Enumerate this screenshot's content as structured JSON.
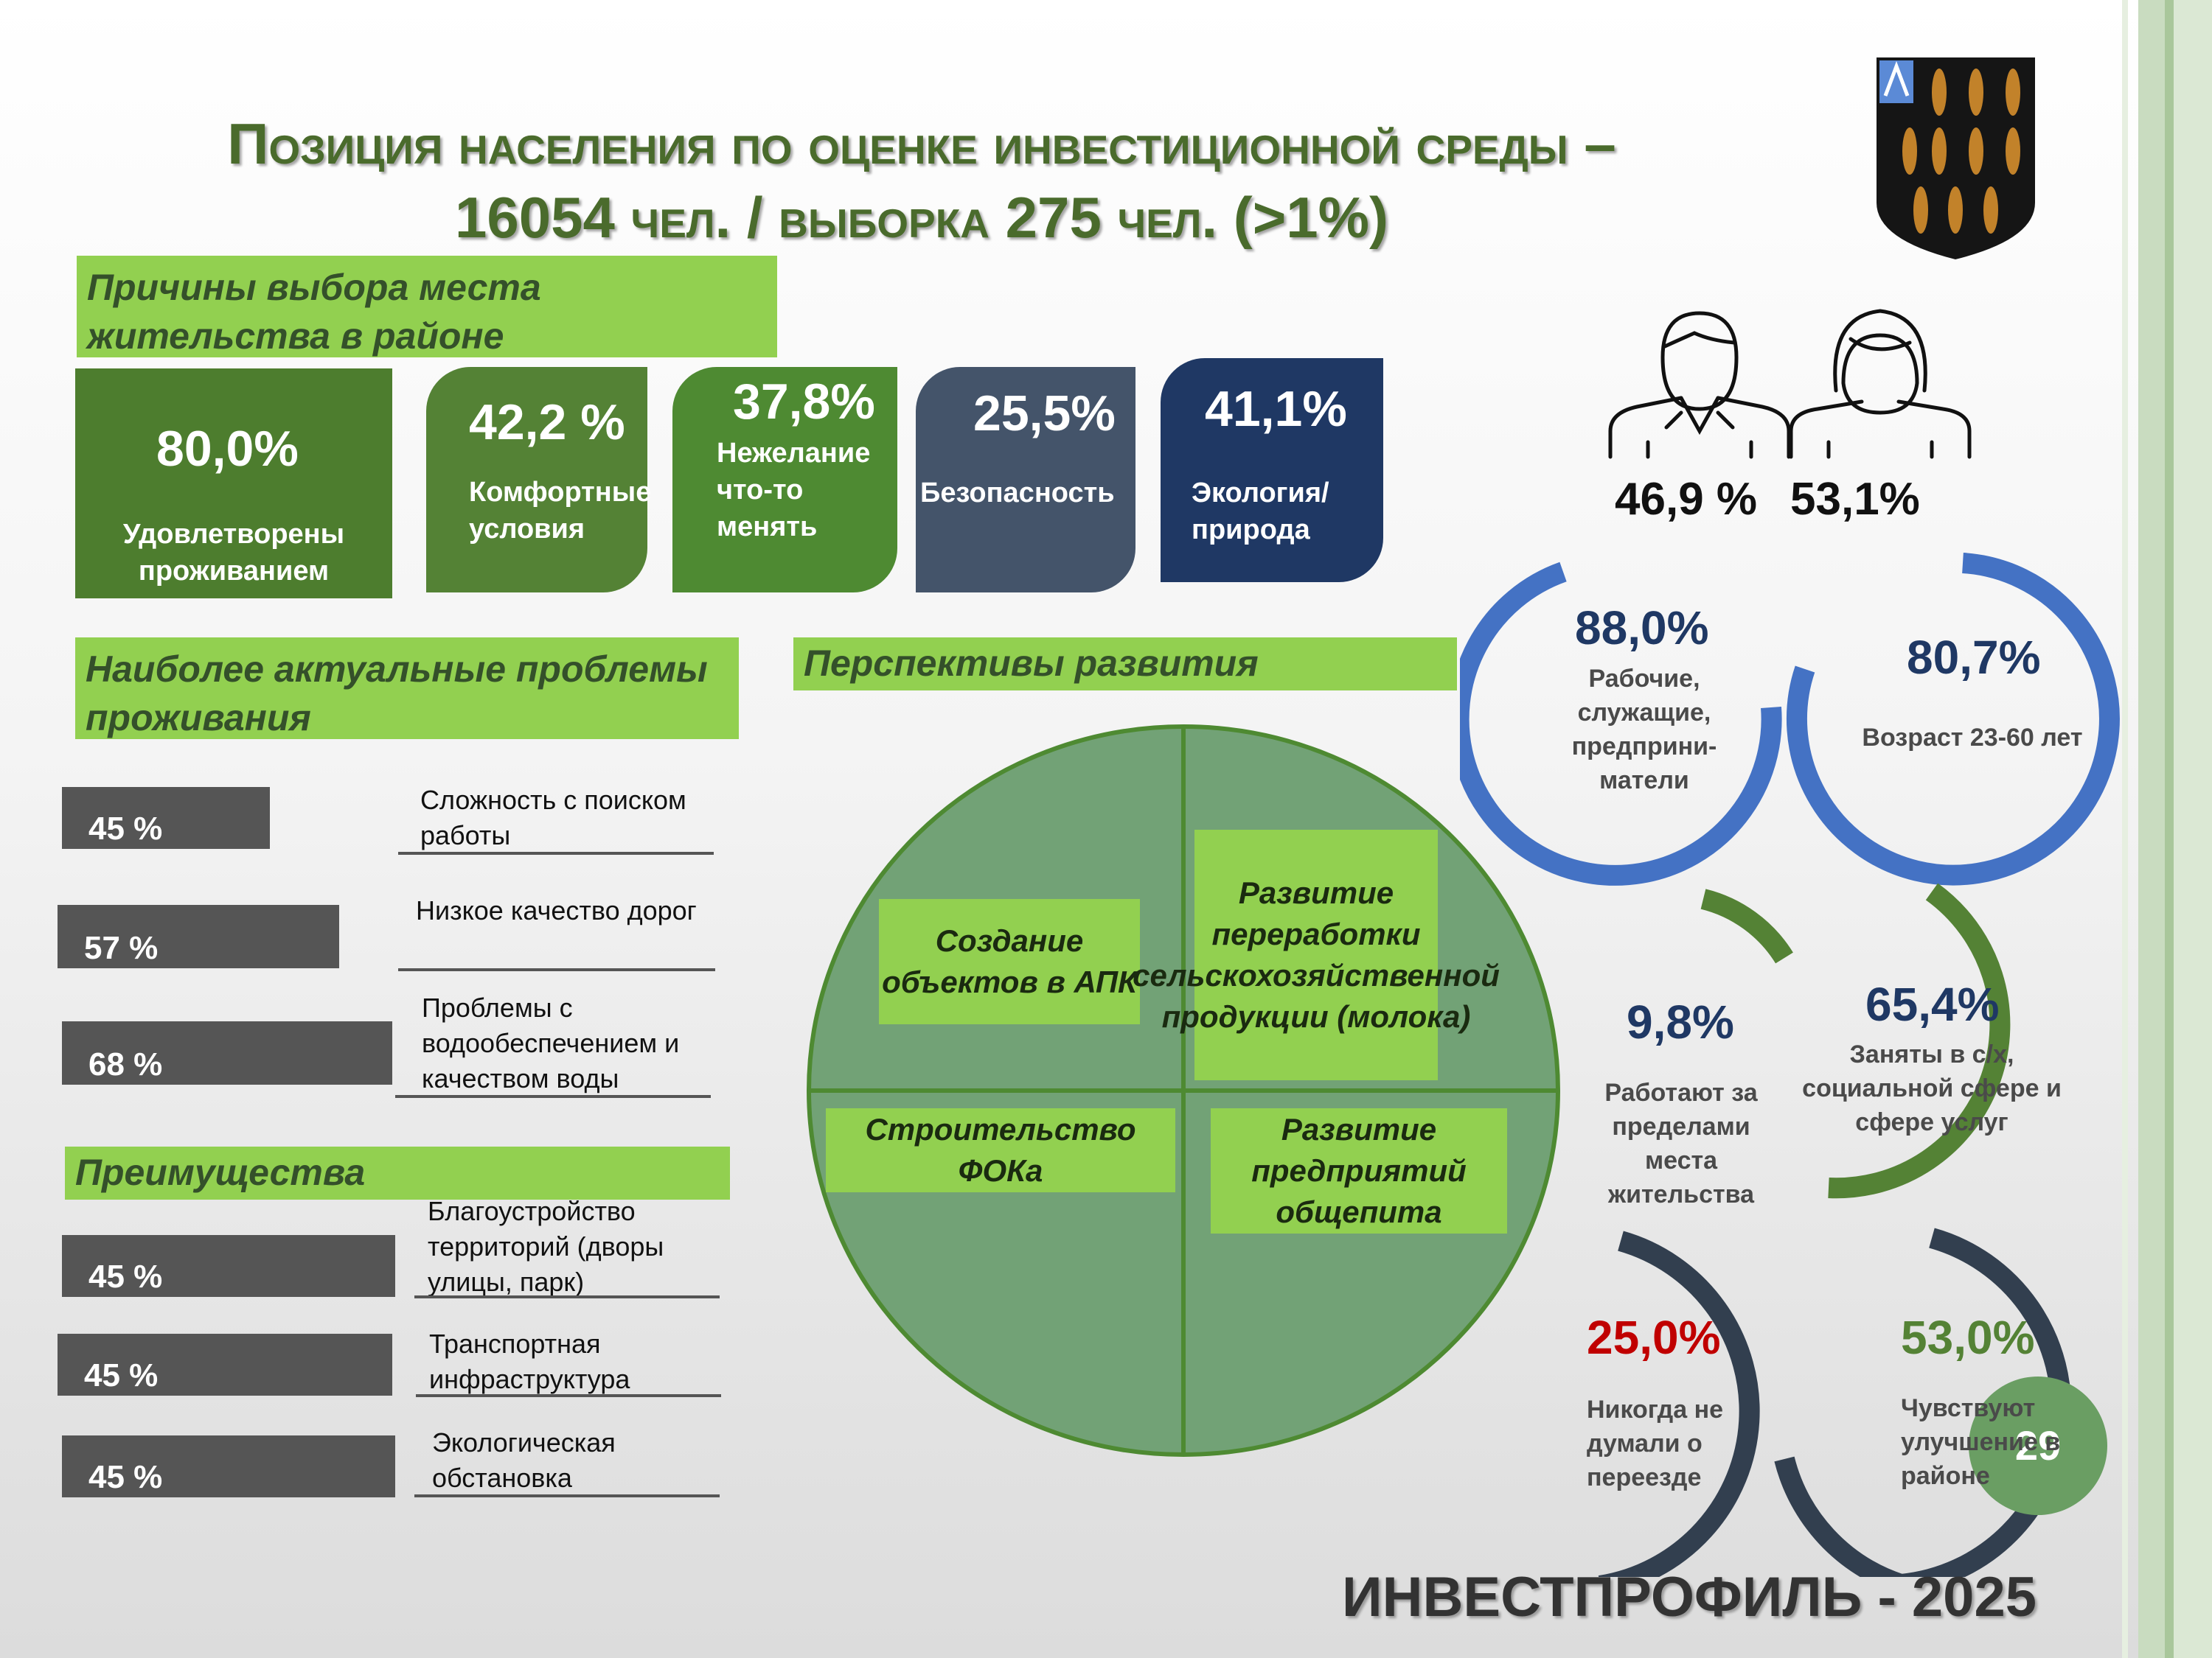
{
  "title": {
    "line1": "Позиция населения по оценке инвестиционной среды –",
    "line2": "16054 чел. / выборка 275 чел. (>1%)"
  },
  "reasons": {
    "heading": "Причины выбора места жительства в районе",
    "cards": [
      {
        "value": "80,0%",
        "label": "Удовлетворены проживанием",
        "color": "#4d7d2e"
      },
      {
        "value": "42,2 %",
        "label": "Комфортные условия",
        "color": "#548235"
      },
      {
        "value": "37,8%",
        "label": "Нежелание что-то менять",
        "color": "#4e8a32"
      },
      {
        "value": "25,5%",
        "label": "Безопасность",
        "color": "#44546a"
      },
      {
        "value": "41,1%",
        "label": "Экология/ природа",
        "color": "#1f3864"
      }
    ]
  },
  "problems": {
    "heading": "Наиболее актуальные проблемы проживания",
    "items": [
      {
        "value": "45 %",
        "label": "Сложность с поиском работы"
      },
      {
        "value": "57 %",
        "label": "Низкое качество дорог"
      },
      {
        "value": "68 %",
        "label": "Проблемы с водообеспечением и качеством воды"
      }
    ]
  },
  "advantages": {
    "heading": "Преимущества",
    "items": [
      {
        "value": "45 %",
        "label": "Благоустройство территорий (дворы улицы, парк)"
      },
      {
        "value": "45 %",
        "label": "Транспортная инфраструктура"
      },
      {
        "value": "45 %",
        "label": "Экологическая обстановка"
      }
    ]
  },
  "prospects": {
    "heading": "Перспективы развития",
    "items": [
      "Создание объектов в АПК",
      "Развитие переработки сельскохозяйственной продукции (молока)",
      "Строительство ФОКа",
      "Развитие предприятий общепита"
    ]
  },
  "gender": {
    "male": "46,9 %",
    "female": "53,1%"
  },
  "stats": {
    "workers": {
      "value": "88,0%",
      "label": "Рабочие, служащие, предприни-матели"
    },
    "age": {
      "value": "80,7%",
      "label": "Возраст 23-60 лет"
    },
    "outside": {
      "value": "9,8%",
      "label": "Работают за пределами места жительства"
    },
    "agri": {
      "value": "65,4%",
      "label": "Заняты в с/х, социальной сфере и сфере услуг"
    },
    "never": {
      "value": "25,0%",
      "label": "Никогда не думали о переезде"
    },
    "improve": {
      "value": "53,0%",
      "label": "Чувствуют улучшение в районе"
    }
  },
  "colors": {
    "ring_blue": "#4472c4",
    "ring_green": "#548235",
    "ring_navy": "#323f4f",
    "red": "#c00000",
    "green_text": "#548235",
    "navy_text": "#1f3864"
  },
  "page_number": "29",
  "footer": "ИНВЕСТПРОФИЛЬ - 2025",
  "emblem": "coat-of-arms"
}
